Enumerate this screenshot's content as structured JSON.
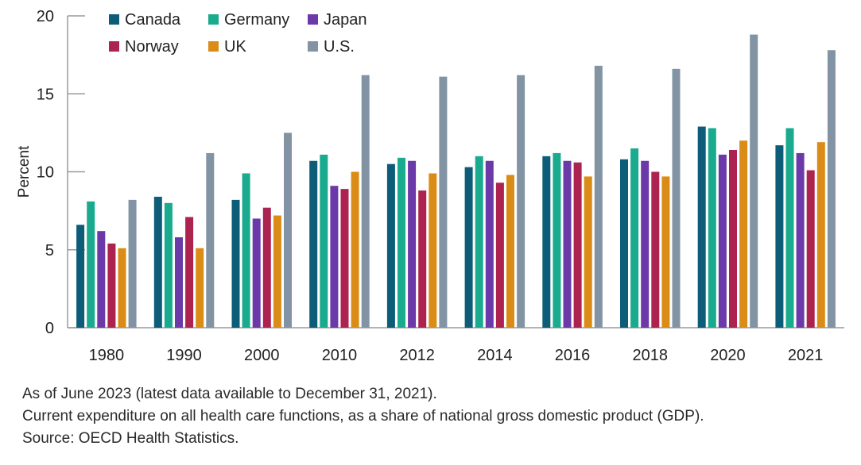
{
  "chart_data": {
    "type": "bar",
    "title": "",
    "ylabel": "Percent",
    "xlabel": "",
    "ylim": [
      0,
      20
    ],
    "yticks": [
      0,
      5,
      10,
      15,
      20
    ],
    "grid": false,
    "legend_position": "top-left",
    "categories": [
      "1980",
      "1990",
      "2000",
      "2010",
      "2012",
      "2014",
      "2016",
      "2018",
      "2020",
      "2021"
    ],
    "series": [
      {
        "name": "Canada",
        "color": "#0d5c78",
        "values": [
          6.6,
          8.4,
          8.2,
          10.7,
          10.5,
          10.3,
          11.0,
          10.8,
          12.9,
          11.7
        ]
      },
      {
        "name": "Germany",
        "color": "#1aab8f",
        "values": [
          8.1,
          8.0,
          9.9,
          11.1,
          10.9,
          11.0,
          11.2,
          11.5,
          12.8,
          12.8
        ]
      },
      {
        "name": "Japan",
        "color": "#6b3aa8",
        "values": [
          6.2,
          5.8,
          7.0,
          9.1,
          10.7,
          10.7,
          10.7,
          10.7,
          11.1,
          11.2
        ]
      },
      {
        "name": "Norway",
        "color": "#ad2350",
        "values": [
          5.4,
          7.1,
          7.7,
          8.9,
          8.8,
          9.3,
          10.6,
          10.0,
          11.4,
          10.1
        ]
      },
      {
        "name": "UK",
        "color": "#db8c17",
        "values": [
          5.1,
          5.1,
          7.2,
          10.0,
          9.9,
          9.8,
          9.7,
          9.7,
          12.0,
          11.9
        ]
      },
      {
        "name": "U.S.",
        "color": "#8294a4",
        "values": [
          8.2,
          11.2,
          12.5,
          16.2,
          16.1,
          16.2,
          16.8,
          16.6,
          18.8,
          17.8
        ]
      }
    ]
  },
  "notes": [
    "As of June 2023 (latest data available to December 31, 2021).",
    "Current expenditure on all health care functions, as a share of national gross domestic product (GDP).",
    "Source: OECD Health Statistics."
  ]
}
